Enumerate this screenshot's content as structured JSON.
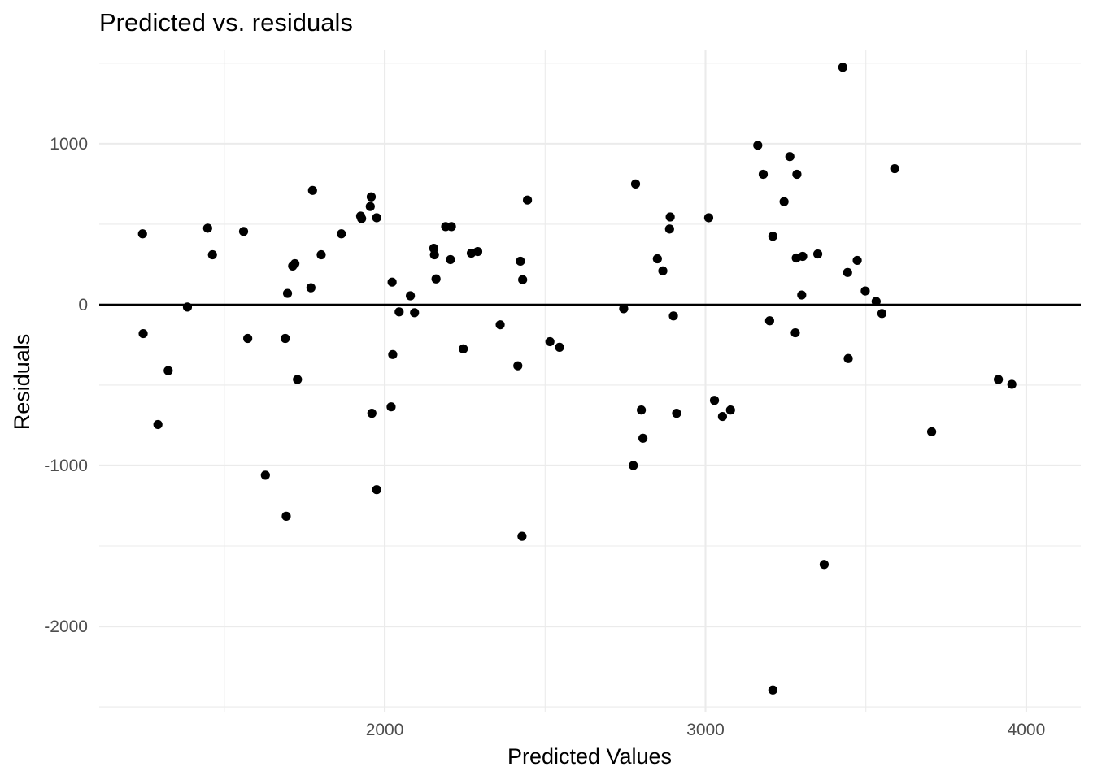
{
  "chart_data": {
    "type": "scatter",
    "title": "Predicted vs. residuals",
    "xlabel": "Predicted Values",
    "ylabel": "Residuals",
    "xlim": [
      1110,
      4170
    ],
    "ylim": [
      -2530,
      1580
    ],
    "x_ticks": [
      2000,
      3000,
      4000
    ],
    "x_tick_labels": [
      "2000",
      "3000",
      "4000"
    ],
    "x_minor_ticks": [
      1500,
      2500,
      3500
    ],
    "y_ticks": [
      -2000,
      -1000,
      0,
      1000
    ],
    "y_tick_labels": [
      "-2000",
      "-1000",
      "0",
      "1000"
    ],
    "y_minor_ticks": [
      -2500,
      -1500,
      -500,
      500,
      1500
    ],
    "hline": 0,
    "grid": true,
    "point_color": "#000000",
    "points": [
      {
        "x": 1245,
        "y": 440
      },
      {
        "x": 1247,
        "y": -180
      },
      {
        "x": 1293,
        "y": -745
      },
      {
        "x": 1325,
        "y": -410
      },
      {
        "x": 1385,
        "y": -15
      },
      {
        "x": 1448,
        "y": 475
      },
      {
        "x": 1463,
        "y": 310
      },
      {
        "x": 1560,
        "y": 455
      },
      {
        "x": 1573,
        "y": -210
      },
      {
        "x": 1628,
        "y": -1060
      },
      {
        "x": 1690,
        "y": -210
      },
      {
        "x": 1693,
        "y": -1315
      },
      {
        "x": 1697,
        "y": 70
      },
      {
        "x": 1713,
        "y": 240
      },
      {
        "x": 1720,
        "y": 255
      },
      {
        "x": 1728,
        "y": -465
      },
      {
        "x": 1770,
        "y": 105
      },
      {
        "x": 1775,
        "y": 710
      },
      {
        "x": 1802,
        "y": 310
      },
      {
        "x": 1865,
        "y": 440
      },
      {
        "x": 1925,
        "y": 550
      },
      {
        "x": 1928,
        "y": 535
      },
      {
        "x": 1955,
        "y": 610
      },
      {
        "x": 1958,
        "y": 670
      },
      {
        "x": 1960,
        "y": -675
      },
      {
        "x": 1975,
        "y": 540
      },
      {
        "x": 1975,
        "y": -1150
      },
      {
        "x": 2020,
        "y": -635
      },
      {
        "x": 2023,
        "y": 140
      },
      {
        "x": 2025,
        "y": -310
      },
      {
        "x": 2045,
        "y": -45
      },
      {
        "x": 2080,
        "y": 55
      },
      {
        "x": 2093,
        "y": -50
      },
      {
        "x": 2153,
        "y": 350
      },
      {
        "x": 2155,
        "y": 310
      },
      {
        "x": 2160,
        "y": 160
      },
      {
        "x": 2190,
        "y": 485
      },
      {
        "x": 2205,
        "y": 280
      },
      {
        "x": 2208,
        "y": 485
      },
      {
        "x": 2245,
        "y": -275
      },
      {
        "x": 2270,
        "y": 320
      },
      {
        "x": 2290,
        "y": 330
      },
      {
        "x": 2360,
        "y": -125
      },
      {
        "x": 2415,
        "y": -380
      },
      {
        "x": 2423,
        "y": 270
      },
      {
        "x": 2428,
        "y": -1440
      },
      {
        "x": 2430,
        "y": 155
      },
      {
        "x": 2445,
        "y": 650
      },
      {
        "x": 2515,
        "y": -230
      },
      {
        "x": 2545,
        "y": -265
      },
      {
        "x": 2745,
        "y": -25
      },
      {
        "x": 2775,
        "y": -1000
      },
      {
        "x": 2782,
        "y": 750
      },
      {
        "x": 2800,
        "y": -655
      },
      {
        "x": 2805,
        "y": -830
      },
      {
        "x": 2850,
        "y": 285
      },
      {
        "x": 2867,
        "y": 210
      },
      {
        "x": 2888,
        "y": 470
      },
      {
        "x": 2890,
        "y": 545
      },
      {
        "x": 2900,
        "y": -70
      },
      {
        "x": 2910,
        "y": -675
      },
      {
        "x": 3010,
        "y": 540
      },
      {
        "x": 3028,
        "y": -595
      },
      {
        "x": 3053,
        "y": -695
      },
      {
        "x": 3078,
        "y": -655
      },
      {
        "x": 3163,
        "y": 990
      },
      {
        "x": 3180,
        "y": 810
      },
      {
        "x": 3200,
        "y": -100
      },
      {
        "x": 3210,
        "y": 425
      },
      {
        "x": 3210,
        "y": -2395
      },
      {
        "x": 3245,
        "y": 640
      },
      {
        "x": 3263,
        "y": 920
      },
      {
        "x": 3280,
        "y": -175
      },
      {
        "x": 3283,
        "y": 290
      },
      {
        "x": 3285,
        "y": 810
      },
      {
        "x": 3300,
        "y": 60
      },
      {
        "x": 3303,
        "y": 300
      },
      {
        "x": 3350,
        "y": 315
      },
      {
        "x": 3370,
        "y": -1615
      },
      {
        "x": 3428,
        "y": 1475
      },
      {
        "x": 3443,
        "y": 200
      },
      {
        "x": 3445,
        "y": -335
      },
      {
        "x": 3473,
        "y": 275
      },
      {
        "x": 3498,
        "y": 85
      },
      {
        "x": 3532,
        "y": 20
      },
      {
        "x": 3550,
        "y": -55
      },
      {
        "x": 3590,
        "y": 845
      },
      {
        "x": 3705,
        "y": -790
      },
      {
        "x": 3913,
        "y": -465
      },
      {
        "x": 3955,
        "y": -495
      }
    ]
  }
}
